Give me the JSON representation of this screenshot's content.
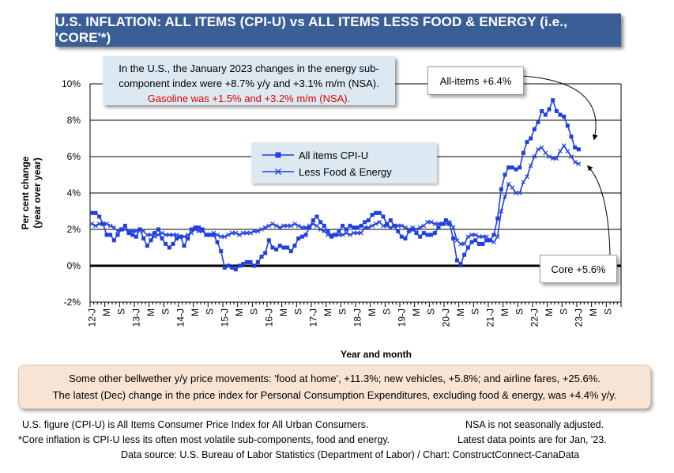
{
  "header": {
    "title": "U.S. INFLATION: ALL ITEMS (CPI-U) vs ALL ITEMS LESS FOOD & ENERGY (i.e., 'CORE'*)"
  },
  "note_top": {
    "line1": "In the U.S., the January 2023 changes in the energy sub-",
    "line2": "component index were +8.7% y/y and +3.1% m/m (NSA).",
    "line3": "Gasoline was +1.5% and +3.2% m/m (NSA)."
  },
  "callouts": {
    "all_items": "All-items +6.4%",
    "core": "Core +5.6%"
  },
  "legend": {
    "series1": "All items CPI-U",
    "series2": "Less Food & Energy"
  },
  "bottom_note": {
    "line1": "Some other bellwether y/y price movements: 'food at home', +11.3%; new vehicles, +5.8%; and airline fares, +25.6%.",
    "line2": "The latest (Dec) change in the price index for Personal Consumption Expenditures, excluding food & energy, was +4.4% y/y."
  },
  "footer": {
    "left1": "U.S. figure (CPI-U) is All Items Consumer Price Index for All Urban Consumers.",
    "right1": "NSA is not seasonally adjusted.",
    "left2": "*Core inflation is CPI-U less its often most volatile sub-components, food and energy.",
    "right2": "Latest data points are for Jan, '23.",
    "source": "Data source: U.S. Bureau of Labor Statistics (Department of Labor) / Chart: ConstructConnect-CanaData"
  },
  "chart_data": {
    "type": "line",
    "xlabel": "Year and month",
    "ylabel": "Per cent change (year over year)",
    "ylim": [
      -2,
      10
    ],
    "yticks": [
      "-2%",
      "0%",
      "2%",
      "4%",
      "6%",
      "8%",
      "10%"
    ],
    "x_tick_labels": [
      "12-J",
      "M",
      "S",
      "13-J",
      "M",
      "S",
      "14-J",
      "M",
      "S",
      "15-J",
      "M",
      "S",
      "16-J",
      "M",
      "S",
      "17-J",
      "M",
      "S",
      "18-J",
      "M",
      "S",
      "19-J",
      "M",
      "S",
      "20-J",
      "M",
      "S",
      "21-J",
      "M",
      "S",
      "22-J",
      "M",
      "S",
      "23-J",
      "M",
      "S"
    ],
    "start": "2012-01",
    "series": [
      {
        "name": "All items CPI-U",
        "color": "#1f3fe0",
        "marker": "square",
        "values": [
          2.9,
          2.9,
          2.7,
          2.3,
          1.7,
          1.7,
          1.4,
          1.7,
          2.0,
          2.2,
          1.8,
          1.7,
          1.6,
          2.0,
          1.5,
          1.1,
          1.4,
          1.8,
          2.0,
          1.5,
          1.2,
          1.0,
          1.2,
          1.5,
          1.6,
          1.1,
          1.5,
          2.0,
          2.1,
          2.1,
          2.0,
          1.7,
          1.7,
          1.7,
          1.3,
          0.8,
          -0.1,
          0.0,
          -0.1,
          -0.2,
          0.0,
          0.1,
          0.2,
          0.2,
          0.0,
          0.2,
          0.5,
          0.7,
          1.4,
          1.0,
          0.9,
          1.1,
          1.0,
          1.0,
          0.8,
          1.1,
          1.5,
          1.6,
          1.7,
          2.1,
          2.5,
          2.7,
          2.4,
          2.2,
          1.9,
          1.6,
          1.7,
          1.9,
          2.2,
          2.0,
          2.2,
          2.1,
          2.1,
          2.2,
          2.4,
          2.5,
          2.8,
          2.9,
          2.9,
          2.7,
          2.3,
          2.5,
          2.2,
          1.9,
          1.6,
          1.5,
          1.9,
          2.0,
          1.8,
          1.6,
          1.8,
          1.7,
          1.7,
          1.8,
          2.1,
          2.3,
          2.5,
          2.3,
          1.5,
          0.3,
          0.1,
          0.6,
          1.0,
          1.3,
          1.4,
          1.2,
          1.2,
          1.4,
          1.4,
          1.7,
          2.6,
          4.2,
          5.0,
          5.4,
          5.4,
          5.3,
          5.4,
          6.2,
          6.8,
          7.0,
          7.5,
          7.9,
          8.5,
          8.3,
          8.6,
          9.1,
          8.5,
          8.3,
          8.2,
          7.7,
          7.1,
          6.5,
          6.4
        ]
      },
      {
        "name": "Less Food & Energy",
        "color": "#1f3fe0",
        "marker": "x",
        "values": [
          2.3,
          2.2,
          2.3,
          2.3,
          2.3,
          2.2,
          2.1,
          1.9,
          2.0,
          2.0,
          1.9,
          1.9,
          1.9,
          2.0,
          1.9,
          1.7,
          1.7,
          1.6,
          1.7,
          1.8,
          1.7,
          1.7,
          1.7,
          1.7,
          1.6,
          1.6,
          1.7,
          1.8,
          2.0,
          1.9,
          1.9,
          1.7,
          1.7,
          1.8,
          1.7,
          1.6,
          1.6,
          1.7,
          1.8,
          1.8,
          1.7,
          1.8,
          1.8,
          1.8,
          1.9,
          1.9,
          2.0,
          2.1,
          2.2,
          2.3,
          2.2,
          2.1,
          2.2,
          2.2,
          2.2,
          2.3,
          2.2,
          2.1,
          2.1,
          2.2,
          2.3,
          2.2,
          2.0,
          1.9,
          1.7,
          1.7,
          1.7,
          1.7,
          1.7,
          1.8,
          1.7,
          1.8,
          1.8,
          1.8,
          2.1,
          2.1,
          2.2,
          2.3,
          2.4,
          2.2,
          2.2,
          2.1,
          2.2,
          2.2,
          2.2,
          2.1,
          2.0,
          2.1,
          2.0,
          2.1,
          2.2,
          2.4,
          2.4,
          2.3,
          2.3,
          2.3,
          2.3,
          2.4,
          2.1,
          1.4,
          1.2,
          1.2,
          1.6,
          1.7,
          1.7,
          1.6,
          1.6,
          1.6,
          1.4,
          1.3,
          1.6,
          3.0,
          3.8,
          4.5,
          4.3,
          4.0,
          4.0,
          4.6,
          4.9,
          5.5,
          6.0,
          6.4,
          6.5,
          6.2,
          6.0,
          5.9,
          5.9,
          6.3,
          6.6,
          6.3,
          6.0,
          5.7,
          5.6
        ]
      }
    ]
  }
}
